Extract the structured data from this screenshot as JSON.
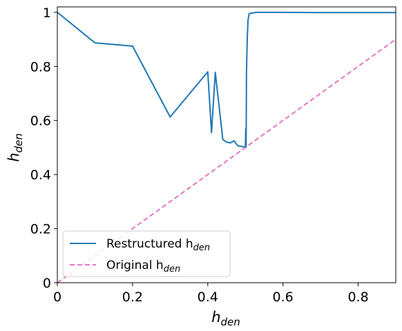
{
  "chart_data": {
    "type": "line",
    "xlabel": "h",
    "xlabel_sub": "den",
    "ylabel": "h",
    "ylabel_sub": "den",
    "xlim": [
      0,
      0.9
    ],
    "ylim": [
      0,
      1.02
    ],
    "x_ticks": [
      0,
      0.2,
      0.4,
      0.6,
      0.8
    ],
    "x_tick_labels": [
      "0",
      "0.2",
      "0.4",
      "0.6",
      "0.8"
    ],
    "y_ticks": [
      0,
      0.2,
      0.4,
      0.6,
      0.8,
      1.0
    ],
    "y_tick_labels": [
      "0",
      "0.2",
      "0.4",
      "0.6",
      "0.8",
      "1"
    ],
    "grid": false,
    "legend_position": "bottom-left",
    "series": [
      {
        "name": "Restructured h",
        "name_sub": "den",
        "color": "#1f77b4",
        "style": "solid",
        "x": [
          0.0,
          0.1,
          0.2,
          0.3,
          0.4,
          0.41,
          0.42,
          0.44,
          0.45,
          0.46,
          0.47,
          0.48,
          0.49,
          0.5,
          0.501,
          0.502,
          0.503,
          0.505,
          0.507,
          0.51,
          0.52,
          0.53,
          0.6,
          0.7,
          0.8,
          0.9
        ],
        "y": [
          1.0,
          0.887,
          0.875,
          0.613,
          0.78,
          0.555,
          0.778,
          0.53,
          0.52,
          0.517,
          0.525,
          0.506,
          0.504,
          0.502,
          0.57,
          0.5,
          0.78,
          0.9,
          0.97,
          0.995,
          0.998,
          1.0,
          1.0,
          0.999,
          0.999,
          0.999
        ]
      },
      {
        "name": "Original h",
        "name_sub": "den",
        "color": "#e377c2",
        "style": "dashed",
        "x": [
          0.0,
          0.9
        ],
        "y": [
          0.0,
          0.9
        ]
      }
    ]
  }
}
